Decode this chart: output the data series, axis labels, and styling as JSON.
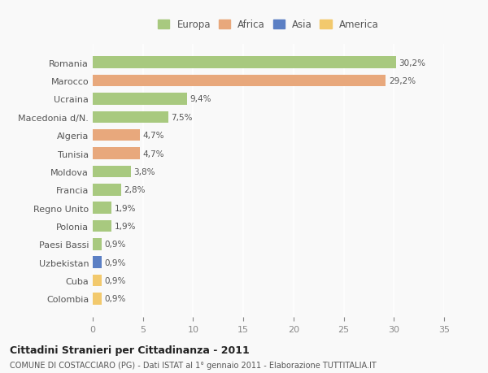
{
  "countries": [
    "Romania",
    "Marocco",
    "Ucraina",
    "Macedonia d/N.",
    "Algeria",
    "Tunisia",
    "Moldova",
    "Francia",
    "Regno Unito",
    "Polonia",
    "Paesi Bassi",
    "Uzbekistan",
    "Cuba",
    "Colombia"
  ],
  "values": [
    30.2,
    29.2,
    9.4,
    7.5,
    4.7,
    4.7,
    3.8,
    2.8,
    1.9,
    1.9,
    0.9,
    0.9,
    0.9,
    0.9
  ],
  "labels": [
    "30,2%",
    "29,2%",
    "9,4%",
    "7,5%",
    "4,7%",
    "4,7%",
    "3,8%",
    "2,8%",
    "1,9%",
    "1,9%",
    "0,9%",
    "0,9%",
    "0,9%",
    "0,9%"
  ],
  "continents": [
    "Europa",
    "Africa",
    "Europa",
    "Europa",
    "Africa",
    "Africa",
    "Europa",
    "Europa",
    "Europa",
    "Europa",
    "Europa",
    "Asia",
    "America",
    "America"
  ],
  "colors": {
    "Europa": "#a8c97f",
    "Africa": "#e8a87c",
    "Asia": "#5b7fc4",
    "America": "#f2c96d"
  },
  "legend_order": [
    "Europa",
    "Africa",
    "Asia",
    "America"
  ],
  "title": "Cittadini Stranieri per Cittadinanza - 2011",
  "subtitle": "COMUNE DI COSTACCIARO (PG) - Dati ISTAT al 1° gennaio 2011 - Elaborazione TUTTITALIA.IT",
  "xlim": [
    0,
    35
  ],
  "xticks": [
    0,
    5,
    10,
    15,
    20,
    25,
    30,
    35
  ],
  "background_color": "#f9f9f9",
  "grid_color": "#ffffff",
  "bar_height": 0.65
}
